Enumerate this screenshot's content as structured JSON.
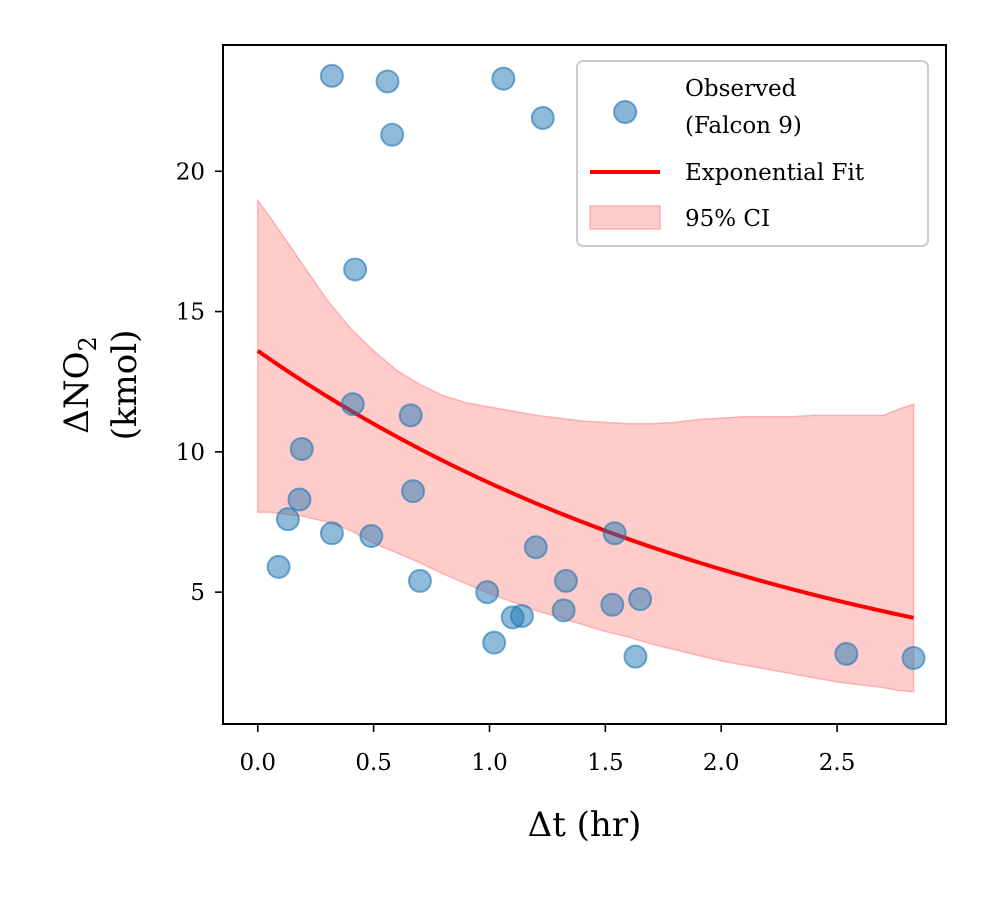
{
  "chart_data": {
    "type": "scatter",
    "title": "",
    "xlabel": "Δt (hr)",
    "ylabel_line1": "ΔNO",
    "ylabel_subscript": "2",
    "ylabel_line2": "(kmol)",
    "xlim": [
      -0.15,
      2.97
    ],
    "ylim": [
      0.3,
      24.5
    ],
    "xticks": [
      0.0,
      0.5,
      1.0,
      1.5,
      2.0,
      2.5
    ],
    "xtick_labels": [
      "0.0",
      "0.5",
      "1.0",
      "1.5",
      "2.0",
      "2.5"
    ],
    "yticks": [
      5,
      10,
      15,
      20
    ],
    "ytick_labels": [
      "5",
      "10",
      "15",
      "20"
    ],
    "grid": false,
    "legend_position": "top-right",
    "colors": {
      "observed": "#1f77b4",
      "fit": "#ff0000",
      "ci_fill": "#ff9999"
    },
    "series": [
      {
        "name": "Observed\n(Falcon 9)",
        "legend_lines": [
          "Observed",
          "(Falcon 9)"
        ],
        "kind": "scatter",
        "points": [
          [
            0.32,
            23.4
          ],
          [
            0.56,
            23.2
          ],
          [
            1.06,
            23.3
          ],
          [
            1.23,
            21.9
          ],
          [
            1.59,
            22.1
          ],
          [
            0.58,
            21.3
          ],
          [
            0.42,
            16.5
          ],
          [
            0.41,
            11.7
          ],
          [
            0.66,
            11.3
          ],
          [
            0.19,
            10.1
          ],
          [
            0.67,
            8.6
          ],
          [
            0.18,
            8.3
          ],
          [
            0.13,
            7.6
          ],
          [
            0.32,
            7.1
          ],
          [
            0.49,
            7.0
          ],
          [
            1.54,
            7.1
          ],
          [
            1.2,
            6.6
          ],
          [
            0.09,
            5.9
          ],
          [
            0.7,
            5.4
          ],
          [
            1.33,
            5.4
          ],
          [
            0.99,
            5.0
          ],
          [
            1.65,
            4.75
          ],
          [
            1.53,
            4.55
          ],
          [
            1.32,
            4.35
          ],
          [
            1.1,
            4.1
          ],
          [
            1.14,
            4.15
          ],
          [
            1.02,
            3.2
          ],
          [
            1.63,
            2.7
          ],
          [
            2.54,
            2.8
          ],
          [
            2.83,
            2.65
          ]
        ]
      },
      {
        "name": "Exponential Fit",
        "kind": "line",
        "a": 13.6,
        "k": 0.425,
        "x_range": [
          0.0,
          2.83
        ]
      },
      {
        "name": "95% CI",
        "kind": "band",
        "x": [
          0.0,
          0.05,
          0.1,
          0.15,
          0.2,
          0.3,
          0.4,
          0.5,
          0.6,
          0.7,
          0.8,
          0.9,
          1.0,
          1.1,
          1.2,
          1.3,
          1.4,
          1.5,
          1.6,
          1.7,
          1.8,
          1.9,
          2.0,
          2.1,
          2.2,
          2.3,
          2.4,
          2.5,
          2.6,
          2.7,
          2.76,
          2.83
        ],
        "upper": [
          18.95,
          18.4,
          17.8,
          17.2,
          16.6,
          15.4,
          14.4,
          13.6,
          12.9,
          12.4,
          12.0,
          11.75,
          11.6,
          11.45,
          11.3,
          11.2,
          11.1,
          11.05,
          11.0,
          11.0,
          11.05,
          11.15,
          11.2,
          11.25,
          11.25,
          11.25,
          11.3,
          11.3,
          11.3,
          11.3,
          11.5,
          11.7
        ],
        "lower": [
          7.85,
          7.85,
          7.8,
          7.75,
          7.7,
          7.5,
          7.2,
          6.75,
          6.4,
          6.05,
          5.65,
          5.3,
          4.95,
          4.65,
          4.35,
          4.1,
          3.85,
          3.6,
          3.4,
          3.15,
          2.95,
          2.75,
          2.55,
          2.4,
          2.25,
          2.1,
          1.95,
          1.8,
          1.7,
          1.6,
          1.5,
          1.45
        ]
      }
    ],
    "legend": [
      {
        "lines": [
          "Observed",
          "(Falcon 9)"
        ]
      },
      {
        "lines": [
          "Exponential Fit"
        ]
      },
      {
        "lines": [
          "95% CI"
        ]
      }
    ]
  }
}
